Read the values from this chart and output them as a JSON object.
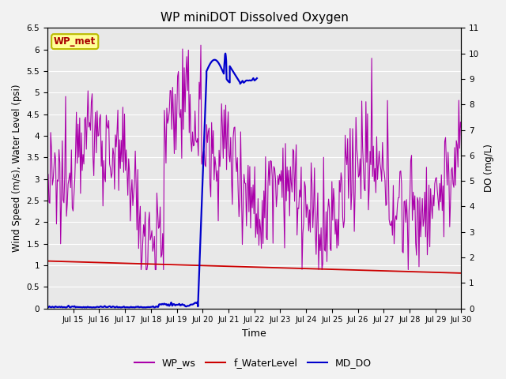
{
  "title": "WP miniDOT Dissolved Oxygen",
  "ylabel_left": "Wind Speed (m/s), Water Level (psi)",
  "ylabel_right": "DO (mg/L)",
  "xlabel": "Time",
  "xlim_days": [
    14,
    30
  ],
  "ylim_left": [
    0.0,
    6.5
  ],
  "ylim_right": [
    0.0,
    11.0
  ],
  "yticks_left": [
    0.0,
    0.5,
    1.0,
    1.5,
    2.0,
    2.5,
    3.0,
    3.5,
    4.0,
    4.5,
    5.0,
    5.5,
    6.0,
    6.5
  ],
  "yticks_right": [
    0.0,
    1.0,
    2.0,
    3.0,
    4.0,
    5.0,
    6.0,
    7.0,
    8.0,
    9.0,
    10.0,
    11.0
  ],
  "xtick_labels": [
    "Jul 15",
    "Jul 16",
    "Jul 17",
    "Jul 18",
    "Jul 19",
    "Jul 20",
    "Jul 21",
    "Jul 22",
    "Jul 23",
    "Jul 24",
    "Jul 25",
    "Jul 26",
    "Jul 27",
    "Jul 28",
    "Jul 29",
    "Jul 30"
  ],
  "xtick_positions": [
    15,
    16,
    17,
    18,
    19,
    20,
    21,
    22,
    23,
    24,
    25,
    26,
    27,
    28,
    29,
    30
  ],
  "wp_ws_color": "#AA00AA",
  "f_waterlevel_color": "#CC0000",
  "md_do_color": "#0000CC",
  "plot_bg_color": "#E8E8E8",
  "fig_bg_color": "#F2F2F2",
  "grid_color": "#FFFFFF",
  "annotation_box_facecolor": "#FFFF99",
  "annotation_box_edgecolor": "#BBBB00",
  "annotation_text": "WP_met",
  "annotation_text_color": "#AA0000",
  "legend_labels": [
    "WP_ws",
    "f_WaterLevel",
    "MD_DO"
  ],
  "legend_colors": [
    "#AA00AA",
    "#CC0000",
    "#0000CC"
  ],
  "ws_n_points": 500,
  "wl_n_points": 300,
  "do_n_points": 200
}
